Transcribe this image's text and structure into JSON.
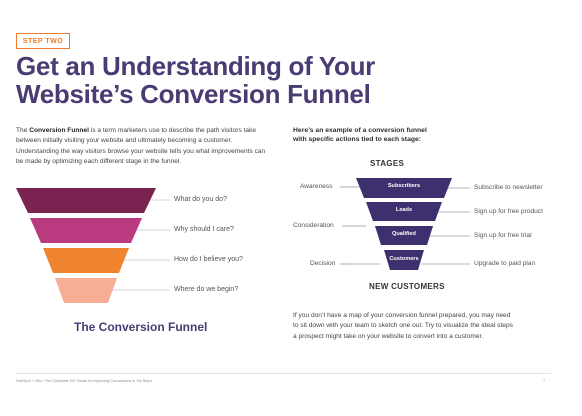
{
  "badge": "STEP TWO",
  "title_line1": "Get an Understanding of Your",
  "title_line2": "Website’s Conversion Funnel",
  "intro": {
    "pre": "The ",
    "bold": "Conversion Funnel",
    "post": " is a term marketers use to describe the path visitors take between initially visiting your website and ultimately becoming a customer. Understanding the way visitors browse your website tells you what improvements can be made by optimizing each different stage in the funnel."
  },
  "left_funnel": {
    "questions": [
      "What do you do?",
      "Why should I care?",
      "How do I believe you?",
      "Where do we begin?"
    ],
    "colors": [
      "#7a2350",
      "#b93a7e",
      "#f0832d",
      "#f7ae94"
    ],
    "caption": "The Conversion Funnel"
  },
  "example_heading_line1": "Here’s an example of a conversion funnel",
  "example_heading_line2": "with specific actions tied to each stage:",
  "right_funnel": {
    "stages_title": "STAGES",
    "stage_names": [
      "Awareness",
      "Consideration",
      "Decision"
    ],
    "levels": [
      "Subscribers",
      "Leads",
      "Qualified",
      "Customers"
    ],
    "actions": [
      "Subscribe to newsletter",
      "Sign up for free product",
      "Sign up for free trial",
      "Upgrade to paid plan"
    ],
    "color": "#3e2f6e",
    "bottom_label": "NEW CUSTOMERS"
  },
  "right_text": "If you don’t have a map of your conversion funnel prepared, you may need to sit down with your team to sketch one out. Try to visualize the ideal steps a prospect might take on your website to convert into a customer.",
  "footer": "HubSpot + Wix • The Complete DIY Guide to Improving Conversions in Six Steps",
  "page_number": "7"
}
